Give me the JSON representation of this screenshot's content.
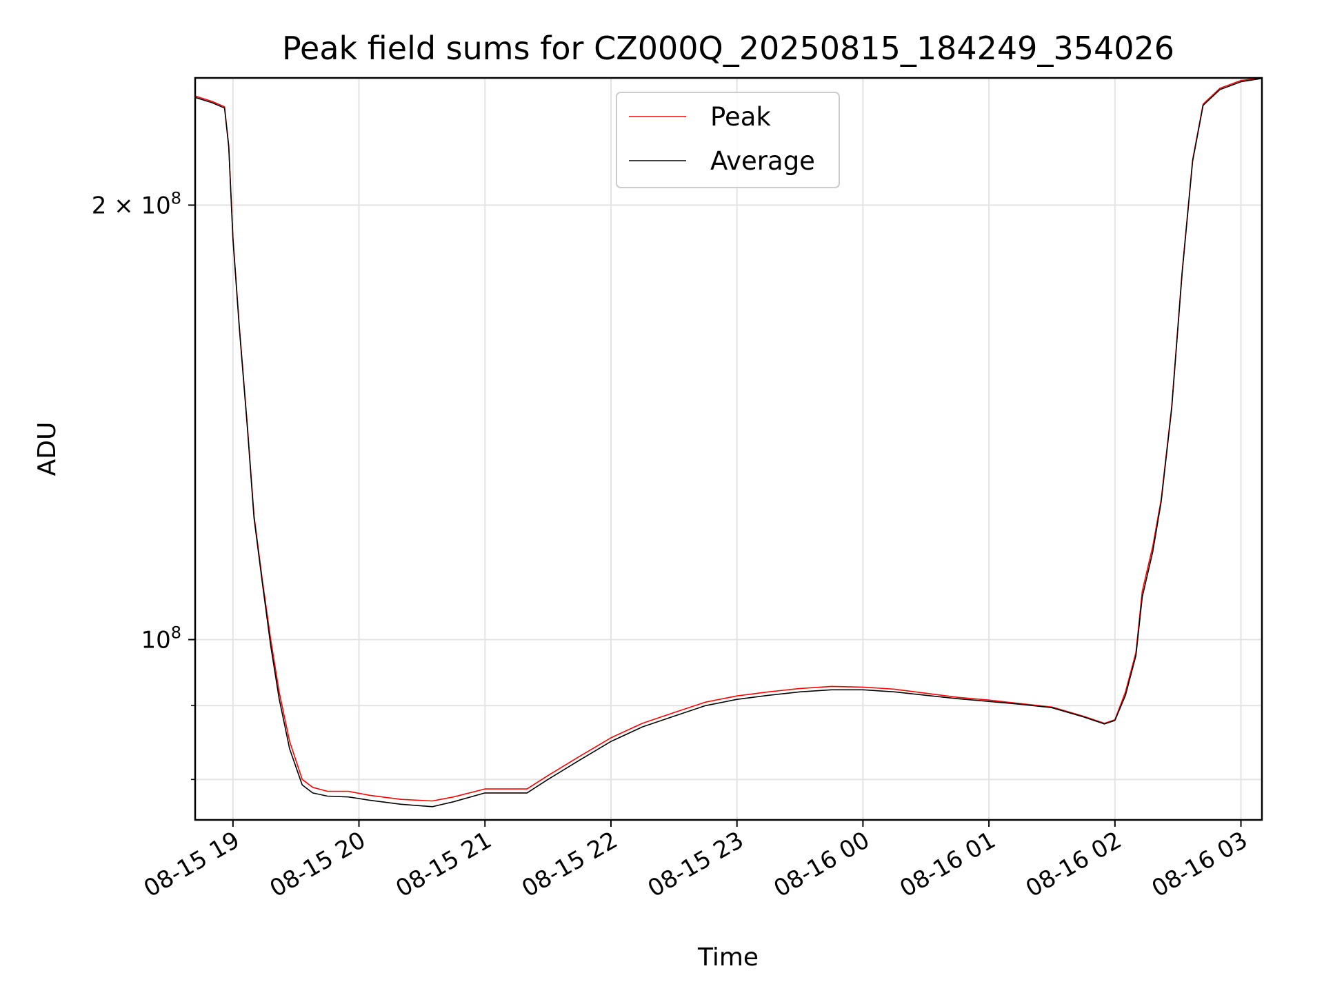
{
  "chart_data": {
    "type": "line",
    "title": "Peak field sums for CZ000Q_20250815_184249_354026",
    "xlabel": "Time",
    "ylabel": "ADU",
    "x_ticks": [
      "08-15 19",
      "08-15 20",
      "08-15 21",
      "08-15 22",
      "08-15 23",
      "08-16 00",
      "08-16 01",
      "08-16 02",
      "08-16 03"
    ],
    "y_ticks": [
      {
        "value": 100000000,
        "label_base": "10",
        "label_exp": "8",
        "label_coef": ""
      },
      {
        "value": 200000000,
        "label_base": "10",
        "label_exp": "8",
        "label_coef": "2 × "
      }
    ],
    "y_minor_ticks": [
      80000000,
      90000000
    ],
    "yscale": "log",
    "xlim": [
      "2025-08-15 18:42",
      "2025-08-16 03:10"
    ],
    "ylim": [
      75000000,
      245000000
    ],
    "grid": true,
    "legend_position": "upper center",
    "series": [
      {
        "name": "Peak",
        "color": "#ff0000",
        "points": [
          [
            "2025-08-15 18:42",
            238000000
          ],
          [
            "2025-08-15 18:50",
            236000000
          ],
          [
            "2025-08-15 18:56",
            234000000
          ],
          [
            "2025-08-15 18:58",
            220000000
          ],
          [
            "2025-08-15 19:00",
            190000000
          ],
          [
            "2025-08-15 19:03",
            165000000
          ],
          [
            "2025-08-15 19:07",
            140000000
          ],
          [
            "2025-08-15 19:10",
            122000000
          ],
          [
            "2025-08-15 19:14",
            110000000
          ],
          [
            "2025-08-15 19:18",
            100000000
          ],
          [
            "2025-08-15 19:22",
            92000000
          ],
          [
            "2025-08-15 19:27",
            85000000
          ],
          [
            "2025-08-15 19:33",
            80000000
          ],
          [
            "2025-08-15 19:38",
            79000000
          ],
          [
            "2025-08-15 19:45",
            78500000
          ],
          [
            "2025-08-15 19:55",
            78500000
          ],
          [
            "2025-08-15 20:05",
            78000000
          ],
          [
            "2025-08-15 20:20",
            77500000
          ],
          [
            "2025-08-15 20:35",
            77300000
          ],
          [
            "2025-08-15 20:45",
            77800000
          ],
          [
            "2025-08-15 21:00",
            78800000
          ],
          [
            "2025-08-15 21:20",
            78800000
          ],
          [
            "2025-08-15 21:30",
            80500000
          ],
          [
            "2025-08-15 21:45",
            83000000
          ],
          [
            "2025-08-15 22:00",
            85500000
          ],
          [
            "2025-08-15 22:15",
            87500000
          ],
          [
            "2025-08-15 22:30",
            89000000
          ],
          [
            "2025-08-15 22:45",
            90500000
          ],
          [
            "2025-08-15 23:00",
            91400000
          ],
          [
            "2025-08-15 23:15",
            92000000
          ],
          [
            "2025-08-15 23:30",
            92500000
          ],
          [
            "2025-08-15 23:45",
            92800000
          ],
          [
            "2025-08-16 00:00",
            92700000
          ],
          [
            "2025-08-16 00:15",
            92400000
          ],
          [
            "2025-08-16 00:30",
            91800000
          ],
          [
            "2025-08-16 00:45",
            91200000
          ],
          [
            "2025-08-16 01:00",
            90800000
          ],
          [
            "2025-08-16 01:15",
            90300000
          ],
          [
            "2025-08-16 01:30",
            89800000
          ],
          [
            "2025-08-16 01:45",
            88500000
          ],
          [
            "2025-08-16 01:55",
            87500000
          ],
          [
            "2025-08-16 02:00",
            88000000
          ],
          [
            "2025-08-16 02:05",
            92000000
          ],
          [
            "2025-08-16 02:10",
            98000000
          ],
          [
            "2025-08-16 02:13",
            108000000
          ],
          [
            "2025-08-16 02:18",
            116000000
          ],
          [
            "2025-08-16 02:22",
            125000000
          ],
          [
            "2025-08-16 02:27",
            145000000
          ],
          [
            "2025-08-16 02:32",
            180000000
          ],
          [
            "2025-08-16 02:37",
            215000000
          ],
          [
            "2025-08-16 02:42",
            235000000
          ],
          [
            "2025-08-16 02:50",
            241000000
          ],
          [
            "2025-08-16 03:00",
            244000000
          ],
          [
            "2025-08-16 03:10",
            245000000
          ]
        ]
      },
      {
        "name": "Average",
        "color": "#000000",
        "points": [
          [
            "2025-08-15 18:42",
            237500000
          ],
          [
            "2025-08-15 18:50",
            235500000
          ],
          [
            "2025-08-15 18:56",
            233500000
          ],
          [
            "2025-08-15 18:58",
            219500000
          ],
          [
            "2025-08-15 19:00",
            189500000
          ],
          [
            "2025-08-15 19:03",
            164500000
          ],
          [
            "2025-08-15 19:07",
            139500000
          ],
          [
            "2025-08-15 19:10",
            121500000
          ],
          [
            "2025-08-15 19:14",
            109500000
          ],
          [
            "2025-08-15 19:18",
            99000000
          ],
          [
            "2025-08-15 19:22",
            91000000
          ],
          [
            "2025-08-15 19:27",
            84000000
          ],
          [
            "2025-08-15 19:33",
            79300000
          ],
          [
            "2025-08-15 19:38",
            78300000
          ],
          [
            "2025-08-15 19:45",
            77900000
          ],
          [
            "2025-08-15 19:55",
            77800000
          ],
          [
            "2025-08-15 20:05",
            77400000
          ],
          [
            "2025-08-15 20:20",
            76900000
          ],
          [
            "2025-08-15 20:35",
            76600000
          ],
          [
            "2025-08-15 20:45",
            77200000
          ],
          [
            "2025-08-15 21:00",
            78300000
          ],
          [
            "2025-08-15 21:20",
            78300000
          ],
          [
            "2025-08-15 21:30",
            80000000
          ],
          [
            "2025-08-15 21:45",
            82500000
          ],
          [
            "2025-08-15 22:00",
            85000000
          ],
          [
            "2025-08-15 22:15",
            87000000
          ],
          [
            "2025-08-15 22:30",
            88500000
          ],
          [
            "2025-08-15 22:45",
            90000000
          ],
          [
            "2025-08-15 23:00",
            90900000
          ],
          [
            "2025-08-15 23:15",
            91500000
          ],
          [
            "2025-08-15 23:30",
            92000000
          ],
          [
            "2025-08-15 23:45",
            92300000
          ],
          [
            "2025-08-16 00:00",
            92300000
          ],
          [
            "2025-08-16 00:15",
            92000000
          ],
          [
            "2025-08-16 00:30",
            91500000
          ],
          [
            "2025-08-16 00:45",
            91000000
          ],
          [
            "2025-08-16 01:00",
            90600000
          ],
          [
            "2025-08-16 01:15",
            90200000
          ],
          [
            "2025-08-16 01:30",
            89700000
          ],
          [
            "2025-08-16 01:45",
            88400000
          ],
          [
            "2025-08-16 01:55",
            87400000
          ],
          [
            "2025-08-16 02:00",
            87900000
          ],
          [
            "2025-08-16 02:05",
            91500000
          ],
          [
            "2025-08-16 02:10",
            97500000
          ],
          [
            "2025-08-16 02:13",
            107000000
          ],
          [
            "2025-08-16 02:18",
            115000000
          ],
          [
            "2025-08-16 02:22",
            124500000
          ],
          [
            "2025-08-16 02:27",
            144500000
          ],
          [
            "2025-08-16 02:32",
            179500000
          ],
          [
            "2025-08-16 02:37",
            214500000
          ],
          [
            "2025-08-16 02:42",
            234500000
          ],
          [
            "2025-08-16 02:50",
            240500000
          ],
          [
            "2025-08-16 03:00",
            243500000
          ],
          [
            "2025-08-16 03:10",
            244800000
          ]
        ]
      }
    ]
  }
}
